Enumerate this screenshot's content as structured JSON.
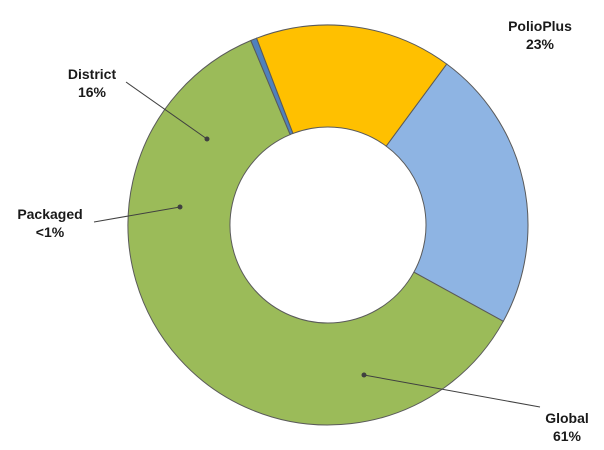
{
  "chart_data": {
    "type": "pie",
    "variant": "donut",
    "legend": "none",
    "slices": [
      {
        "label": "PolioPlus",
        "value_label": "23%",
        "value": 23,
        "color": "#8eb4e3"
      },
      {
        "label": "Global",
        "value_label": "61%",
        "value": 61,
        "color": "#9bbb59"
      },
      {
        "label": "Packaged",
        "value_label": "<1%",
        "value": 0.5,
        "color": "#4f81bd"
      },
      {
        "label": "District",
        "value_label": "16%",
        "value": 16,
        "color": "#ffc000"
      }
    ]
  }
}
